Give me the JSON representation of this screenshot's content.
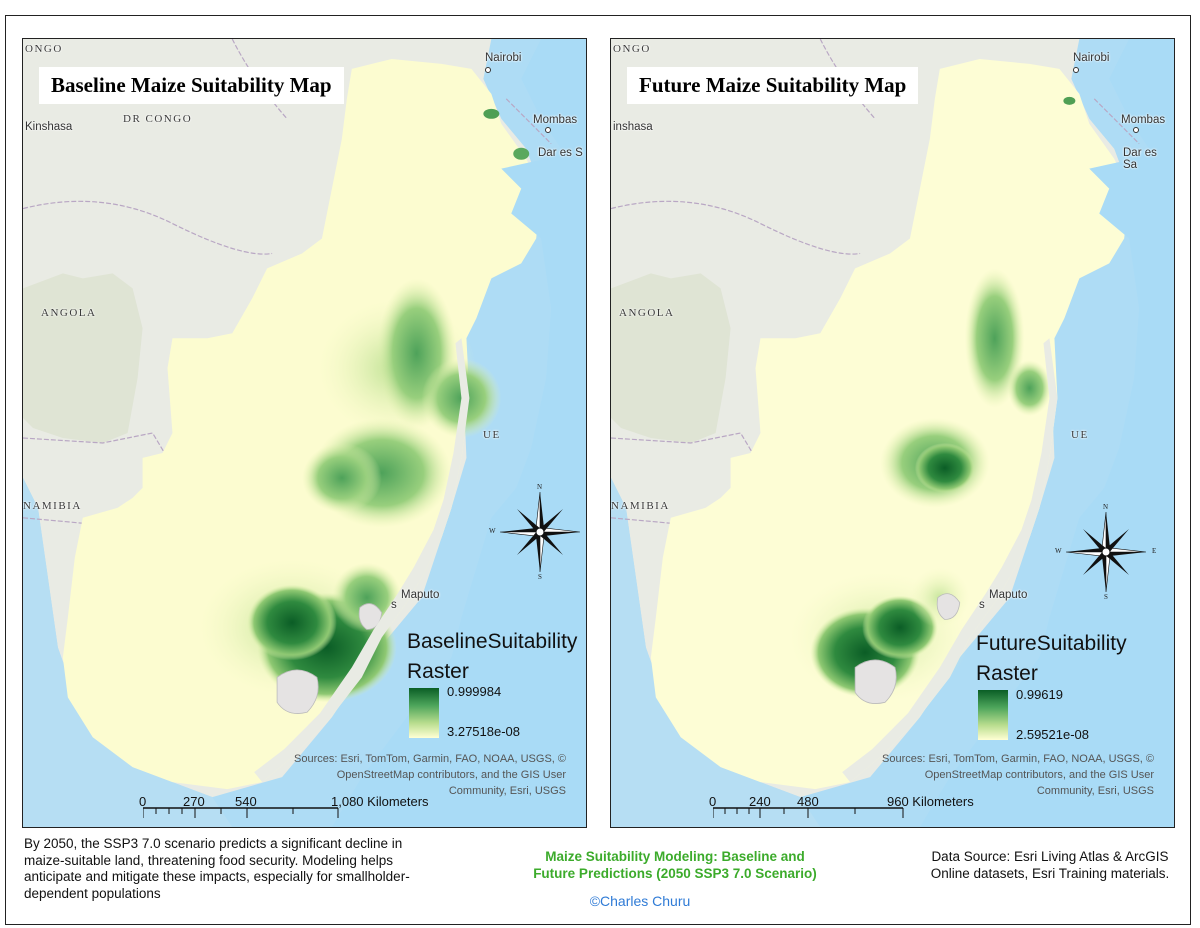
{
  "maps": [
    {
      "title": "Baseline Maize Suitability Map",
      "legend": {
        "title_line1": "BaselineSuitability",
        "title_line2": "Raster",
        "max": "0.999984",
        "min": "3.27518e-08"
      },
      "scale": {
        "labels": [
          "0",
          "270",
          "540",
          "1,080 Kilometers"
        ]
      },
      "places": {
        "nairobi": "Nairobi",
        "mombasa": "Mombas",
        "dar": "Dar es S",
        "kinshasa": "Kinshasa",
        "maputo": "Maputo",
        "congo": "ONGO",
        "drcongo": "DR CONGO",
        "angola": "ANGOLA",
        "namibia": "NAMIBIA",
        "moz": "UE",
        "swazi": "s"
      }
    },
    {
      "title": "Future Maize Suitability Map",
      "legend": {
        "title_line1": "FutureSuitability",
        "title_line2": "Raster",
        "max": "0.99619",
        "min": "2.59521e-08"
      },
      "scale": {
        "labels": [
          "0",
          "240",
          "480",
          "960 Kilometers"
        ]
      },
      "places": {
        "nairobi": "Nairobi",
        "mombasa": "Mombas",
        "dar": "Dar es Sa",
        "kinshasa": "inshasa",
        "maputo": "Maputo",
        "congo": "ONGO",
        "angola": "ANGOLA",
        "namibia": "NAMIBIA",
        "moz": "UE",
        "swazi": "s"
      }
    }
  ],
  "sources": "Sources: Esri, TomTom, Garmin, FAO, NOAA, USGS, © OpenStreetMap contributors, and the GIS User Community, Esri, USGS",
  "compass": {
    "n": "N",
    "s": "S",
    "e": "E",
    "w": "W"
  },
  "footer": {
    "note": "By 2050, the SSP3 7.0 scenario predicts a significant decline in maize-suitable land, threatening food security. Modeling helps anticipate and mitigate these impacts, especially for smallholder-dependent populations",
    "title_line1": "Maize Suitability Modeling: Baseline and",
    "title_line2": "Future Predictions (2050 SSP3 7.0 Scenario)",
    "credit": "©Charles Churu",
    "source": "Data Source: Esri Living Atlas & ArcGIS Online datasets, Esri Training materials."
  },
  "colors": {
    "ocean": "#aedcf5",
    "land": "#e9ebe4",
    "suitability_low": "#ffffd4",
    "suitability_high": "#0a5e26",
    "title_green": "#3cab2b",
    "credit_blue": "#2f7bd6"
  }
}
